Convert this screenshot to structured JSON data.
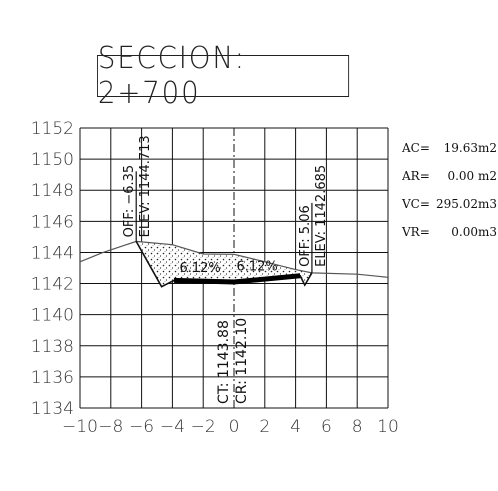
{
  "title": "SECCION:  2+700",
  "chart_data": {
    "type": "cross-section",
    "x_ticks": [
      "−10",
      "−8",
      "−6",
      "−4",
      "−2",
      "0",
      "2",
      "4",
      "6",
      "8",
      "10"
    ],
    "y_ticks": [
      "1152",
      "1150",
      "1148",
      "1146",
      "1144",
      "1142",
      "1140",
      "1138",
      "1136",
      "1134"
    ],
    "xlim": [
      -10,
      10
    ],
    "ylim": [
      1134,
      1152
    ],
    "ground_profile": [
      [
        -10,
        1143.4
      ],
      [
        -8.5,
        1144.0
      ],
      [
        -6.35,
        1144.713
      ],
      [
        -4,
        1144.5
      ],
      [
        -2,
        1143.9
      ],
      [
        0,
        1143.88
      ],
      [
        2,
        1143.4
      ],
      [
        4,
        1142.9
      ],
      [
        5.06,
        1142.685
      ],
      [
        8,
        1142.6
      ],
      [
        10,
        1142.4
      ]
    ],
    "design_section": [
      [
        -6.35,
        1144.713
      ],
      [
        -4.7,
        1141.8
      ],
      [
        -3.9,
        1142.2
      ],
      [
        0,
        1142.1
      ],
      [
        4.3,
        1142.5
      ],
      [
        4.6,
        1141.9
      ],
      [
        5.06,
        1142.685
      ]
    ],
    "slope_left_label": "6.12%",
    "slope_right_label": "6.12%",
    "left_offset": {
      "off_label": "OFF: −6.35",
      "elev_label": "ELEV: 1144.713",
      "x": -6.35,
      "elev": 1144.713
    },
    "right_offset": {
      "off_label": "OFF: 5.06",
      "elev_label": "ELEV: 1142.685",
      "x": 5.06,
      "elev": 1142.685
    },
    "center_labels": {
      "ct": "CT: 1143.88",
      "cr": "CR: 1142.10"
    }
  },
  "summary": [
    {
      "key": "AC=",
      "value": "19.63m2"
    },
    {
      "key": "AR=",
      "value": "0.00 m2"
    },
    {
      "key": "VC=",
      "value": "295.02m3"
    },
    {
      "key": "VR=",
      "value": "0.00m3"
    }
  ]
}
